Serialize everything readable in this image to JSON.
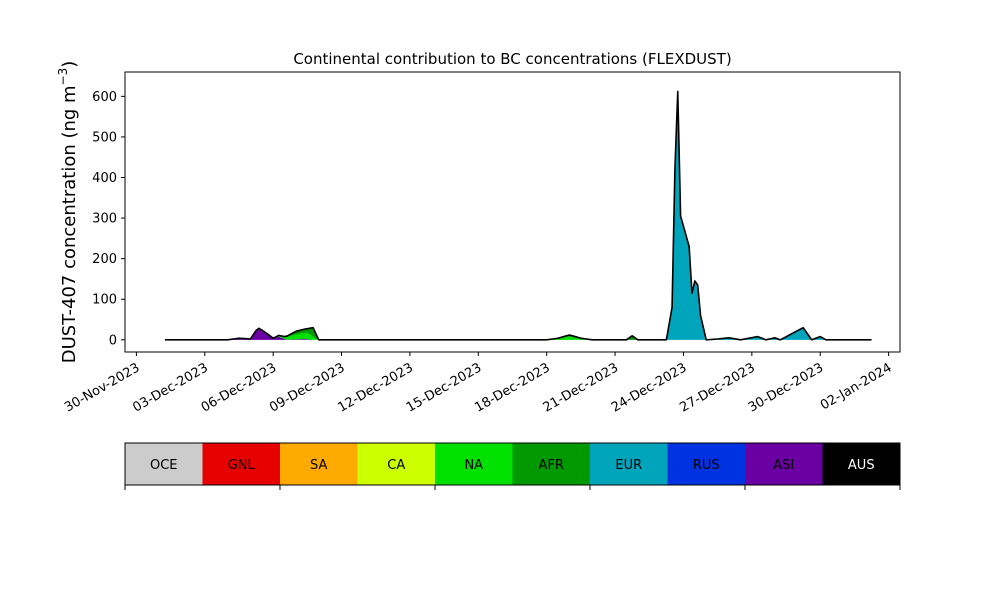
{
  "chart_data": {
    "type": "area",
    "title": "Continental contribution to BC concentrations (FLEXDUST)",
    "ylabel_prefix": "DUST-407 concentration (ng m",
    "ylabel_sup": "−3",
    "ylabel_suffix": ")",
    "xlabel": "",
    "ylim": [
      -30,
      660
    ],
    "xlim": [
      "2023-11-29T12:00",
      "2024-01-02T12:00"
    ],
    "yticks": [
      0,
      100,
      200,
      300,
      400,
      500,
      600
    ],
    "xticks": [
      "30-Nov-2023",
      "03-Dec-2023",
      "06-Dec-2023",
      "09-Dec-2023",
      "12-Dec-2023",
      "15-Dec-2023",
      "18-Dec-2023",
      "21-Dec-2023",
      "24-Dec-2023",
      "27-Dec-2023",
      "30-Dec-2023",
      "02-Jan-2024"
    ],
    "stack_order": [
      "ASI",
      "NA",
      "AFR",
      "EUR"
    ],
    "series": [
      {
        "name": "EUR",
        "color": "#00a4bb",
        "points": [
          [
            "2023-12-01T06:00",
            0
          ],
          [
            "2023-12-23T06:00",
            0
          ],
          [
            "2023-12-23T12:00",
            80
          ],
          [
            "2023-12-23T15:00",
            420
          ],
          [
            "2023-12-23T18:00",
            612
          ],
          [
            "2023-12-23T21:00",
            305
          ],
          [
            "2023-12-24T03:00",
            255
          ],
          [
            "2023-12-24T06:00",
            230
          ],
          [
            "2023-12-24T09:00",
            115
          ],
          [
            "2023-12-24T12:00",
            145
          ],
          [
            "2023-12-24T15:00",
            135
          ],
          [
            "2023-12-24T18:00",
            60
          ],
          [
            "2023-12-25T00:00",
            0
          ],
          [
            "2023-12-25T12:00",
            2
          ],
          [
            "2023-12-26T00:00",
            5
          ],
          [
            "2023-12-26T12:00",
            0
          ],
          [
            "2023-12-27T06:00",
            8
          ],
          [
            "2023-12-27T15:00",
            0
          ],
          [
            "2023-12-28T00:00",
            5
          ],
          [
            "2023-12-28T06:00",
            0
          ],
          [
            "2023-12-29T06:00",
            30
          ],
          [
            "2023-12-29T15:00",
            0
          ],
          [
            "2023-12-30T00:00",
            8
          ],
          [
            "2023-12-30T06:00",
            0
          ],
          [
            "2024-01-01T06:00",
            0
          ]
        ]
      },
      {
        "name": "ASI",
        "color": "#6a00a4",
        "points": [
          [
            "2023-12-01T06:00",
            0
          ],
          [
            "2023-12-04T00:00",
            0
          ],
          [
            "2023-12-04T12:00",
            4
          ],
          [
            "2023-12-05T00:00",
            2
          ],
          [
            "2023-12-05T08:00",
            30
          ],
          [
            "2023-12-05T16:00",
            18
          ],
          [
            "2023-12-06T00:00",
            4
          ],
          [
            "2023-12-06T06:00",
            8
          ],
          [
            "2023-12-06T14:00",
            0
          ],
          [
            "2023-12-07T10:00",
            2
          ],
          [
            "2023-12-07T18:00",
            0
          ],
          [
            "2024-01-01T06:00",
            0
          ]
        ]
      },
      {
        "name": "NA",
        "color": "#00e100",
        "points": [
          [
            "2023-12-01T06:00",
            0
          ],
          [
            "2023-12-06T00:00",
            0
          ],
          [
            "2023-12-06T12:00",
            6
          ],
          [
            "2023-12-07T00:00",
            12
          ],
          [
            "2023-12-07T12:00",
            16
          ],
          [
            "2023-12-07T18:00",
            8
          ],
          [
            "2023-12-08T00:00",
            0
          ],
          [
            "2023-12-18T00:00",
            0
          ],
          [
            "2023-12-18T12:00",
            4
          ],
          [
            "2023-12-19T00:00",
            8
          ],
          [
            "2023-12-19T12:00",
            2
          ],
          [
            "2023-12-20T00:00",
            0
          ],
          [
            "2024-01-01T06:00",
            0
          ]
        ]
      },
      {
        "name": "AFR",
        "color": "#009900",
        "points": [
          [
            "2023-12-01T06:00",
            0
          ],
          [
            "2023-12-06T12:00",
            0
          ],
          [
            "2023-12-07T00:00",
            8
          ],
          [
            "2023-12-07T12:00",
            10
          ],
          [
            "2023-12-07T18:00",
            22
          ],
          [
            "2023-12-08T00:00",
            0
          ],
          [
            "2023-12-18T12:00",
            0
          ],
          [
            "2023-12-19T00:00",
            4
          ],
          [
            "2023-12-19T12:00",
            2
          ],
          [
            "2023-12-20T00:00",
            0
          ],
          [
            "2023-12-21T12:00",
            0
          ],
          [
            "2023-12-21T18:00",
            10
          ],
          [
            "2023-12-22T00:00",
            0
          ],
          [
            "2024-01-01T06:00",
            0
          ]
        ]
      }
    ],
    "total_line_color": "#000000"
  },
  "colorbar": {
    "categories": [
      "OCE",
      "GNL",
      "SA",
      "CA",
      "NA",
      "AFR",
      "EUR",
      "RUS",
      "ASI",
      "AUS"
    ],
    "colors": [
      "#cccccc",
      "#e60000",
      "#ffaa00",
      "#ccff00",
      "#00e100",
      "#009900",
      "#00a4bb",
      "#0032e1",
      "#6a00a4",
      "#000000"
    ],
    "label_colors": [
      "#000000",
      "#000000",
      "#000000",
      "#000000",
      "#000000",
      "#000000",
      "#000000",
      "#000000",
      "#000000",
      "#ffffff"
    ]
  }
}
